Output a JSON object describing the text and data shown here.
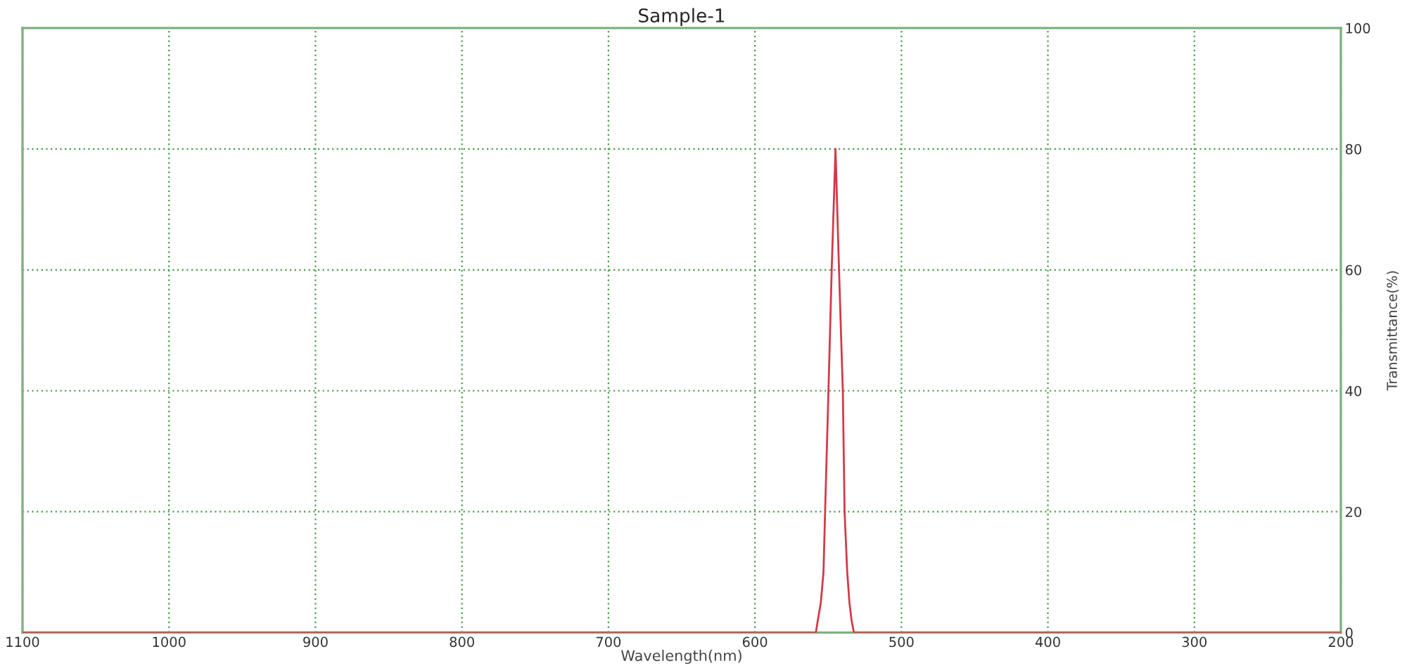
{
  "chart_data": {
    "type": "line",
    "title": "Sample-1",
    "xlabel": "Wavelength(nm)",
    "ylabel": "Transmittance(%)",
    "x": [
      200,
      532.4,
      534,
      535.5,
      537,
      538.8,
      540,
      542.6,
      545,
      547.6,
      549.8,
      552.1,
      553.2,
      555,
      557.1,
      558.4,
      1100
    ],
    "series": [
      {
        "color": "#d23a4a",
        "values": [
          0,
          0,
          2,
          5,
          10,
          20,
          40,
          60,
          80,
          60,
          40,
          20,
          10,
          5,
          2,
          0,
          0
        ]
      }
    ],
    "xlim": [
      1100,
      200
    ],
    "xticks": [
      1100,
      1000,
      900,
      800,
      700,
      600,
      500,
      400,
      300,
      200
    ],
    "ylim": [
      0,
      100
    ],
    "yticks": [
      0,
      20,
      40,
      60,
      80,
      100
    ],
    "grid": true,
    "marker": "none",
    "line_style": "solid"
  }
}
